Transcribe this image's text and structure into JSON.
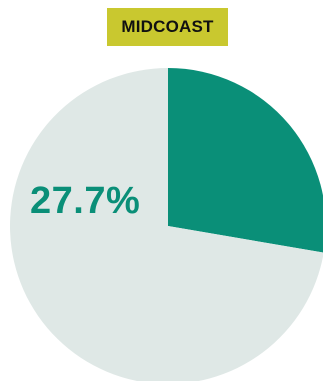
{
  "chart_data": {
    "type": "pie",
    "title": "MIDCOAST",
    "slices": [
      {
        "value": 27.7,
        "color": "#0a8f78"
      },
      {
        "value": 72.3,
        "color": "#dfe8e6"
      }
    ],
    "data_label": "27.7%"
  },
  "colors": {
    "title_badge": "#c9c82f",
    "title_text": "#111111",
    "highlight": "#0a8f78",
    "remainder": "#dfe8e6"
  }
}
